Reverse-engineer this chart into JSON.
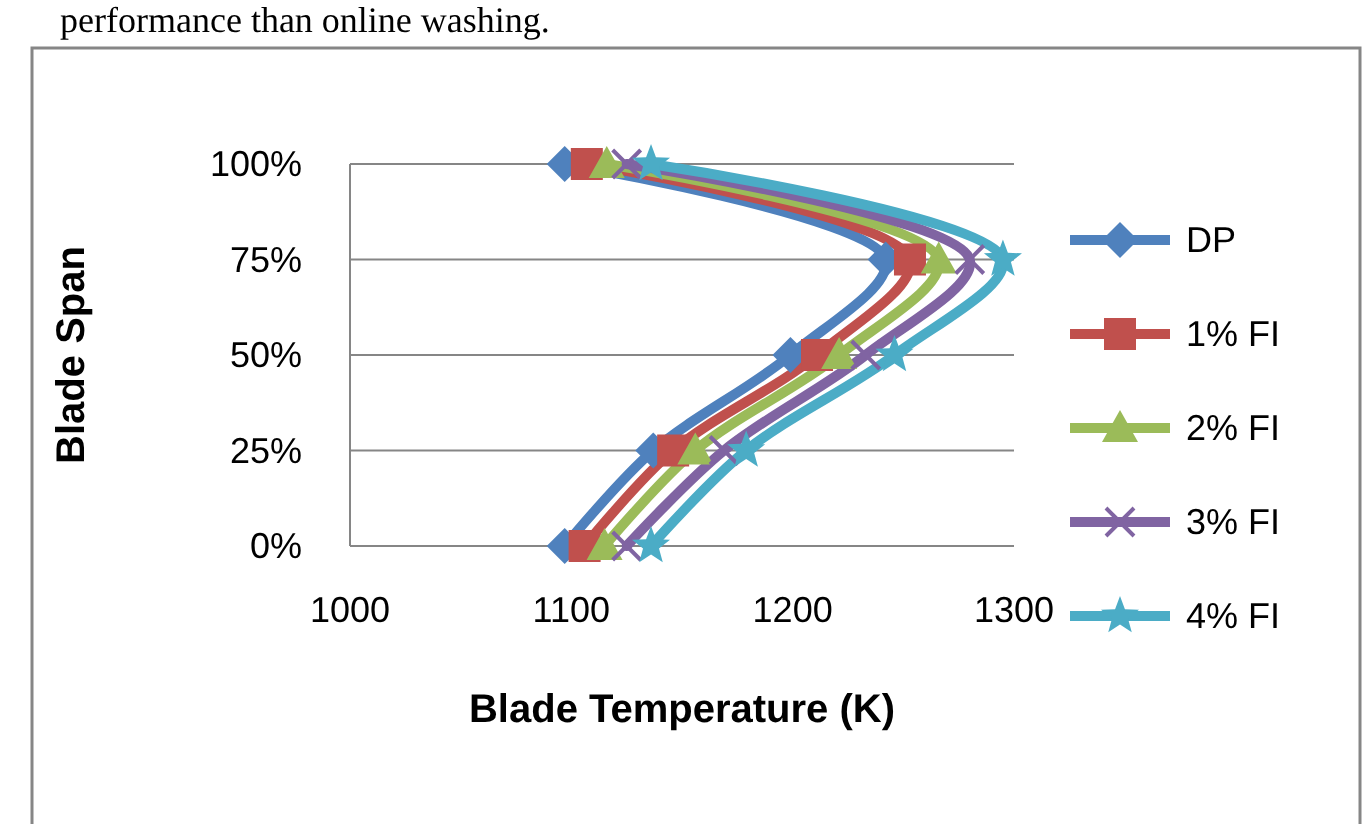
{
  "chart_data": {
    "type": "line",
    "xlabel": "Blade Temperature (K)",
    "ylabel": "Blade Span",
    "annotations": [
      "performance than online washing."
    ],
    "xlim": [
      1000,
      1300
    ],
    "xticks": [
      1000,
      1100,
      1200,
      1300
    ],
    "ylim": [
      0,
      100
    ],
    "yticks": [
      {
        "value": 0,
        "label": "0%"
      },
      {
        "value": 25,
        "label": "25%"
      },
      {
        "value": 50,
        "label": "50%"
      },
      {
        "value": 75,
        "label": "75%"
      },
      {
        "value": 100,
        "label": "100%"
      }
    ],
    "grid": "y",
    "legend": "right",
    "series": [
      {
        "name": "DP",
        "color": "#4f81bd",
        "marker": "diamond",
        "x": [
          1097,
          1137,
          1199,
          1242,
          1097
        ],
        "values": [
          0,
          25,
          50,
          75,
          100
        ]
      },
      {
        "name": "1% FI",
        "color": "#c0504d",
        "marker": "square",
        "x": [
          1106,
          1146,
          1211,
          1253,
          1107
        ],
        "values": [
          0,
          25,
          50,
          75,
          100
        ]
      },
      {
        "name": "2% FI",
        "color": "#9bbb59",
        "marker": "triangle",
        "x": [
          1115,
          1156,
          1221,
          1266,
          1116
        ],
        "values": [
          0,
          25,
          50,
          75,
          100
        ]
      },
      {
        "name": "3% FI",
        "color": "#8064a2",
        "marker": "cross",
        "x": [
          1125,
          1169,
          1233,
          1280,
          1125
        ],
        "values": [
          0,
          25,
          50,
          75,
          100
        ]
      },
      {
        "name": "4% FI",
        "color": "#4bacc6",
        "marker": "star",
        "x": [
          1136,
          1179,
          1246,
          1295,
          1136
        ],
        "values": [
          0,
          25,
          50,
          75,
          100
        ]
      }
    ]
  }
}
